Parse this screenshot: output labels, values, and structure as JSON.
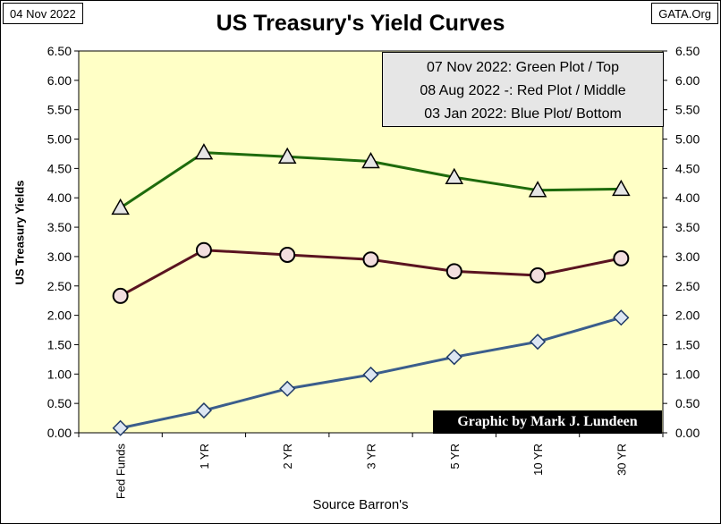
{
  "header": {
    "date_label": "04 Nov 2022",
    "source_label": "GATA.Org",
    "title": "US Treasury's Yield Curves"
  },
  "legend": [
    "07 Nov 2022: Green  Plot / Top",
    "08 Aug 2022 -: Red Plot / Middle",
    "03 Jan 2022: Blue Plot/ Bottom"
  ],
  "credit": "Graphic by Mark J. Lundeen",
  "chart_data": {
    "type": "line",
    "categories": [
      "Fed Funds",
      "1 YR",
      "2 YR",
      "3 YR",
      "5 YR",
      "10 YR",
      "30 YR"
    ],
    "xlabel": "Source Barron's",
    "ylabel": "US Treasury Yields",
    "ylim": [
      0,
      6.5
    ],
    "ytick_step": 0.5,
    "grid": false,
    "legend_placement": "top-right",
    "series": [
      {
        "name": "07 Nov 2022",
        "values": [
          3.83,
          4.77,
          4.7,
          4.62,
          4.35,
          4.13,
          4.15
        ],
        "line_color": "#1e6b0c",
        "marker": "triangle",
        "marker_fill": "#e6e6e6"
      },
      {
        "name": "08 Aug 2022",
        "values": [
          2.33,
          3.11,
          3.03,
          2.95,
          2.75,
          2.68,
          2.97
        ],
        "line_color": "#5a1420",
        "marker": "circle",
        "marker_fill": "#f2dede"
      },
      {
        "name": "03 Jan 2022",
        "values": [
          0.08,
          0.38,
          0.75,
          0.99,
          1.29,
          1.55,
          1.96
        ],
        "line_color": "#3b5e8c",
        "marker": "diamond",
        "marker_fill": "#dce6f2"
      }
    ],
    "plot_background": "#ffffc6"
  }
}
